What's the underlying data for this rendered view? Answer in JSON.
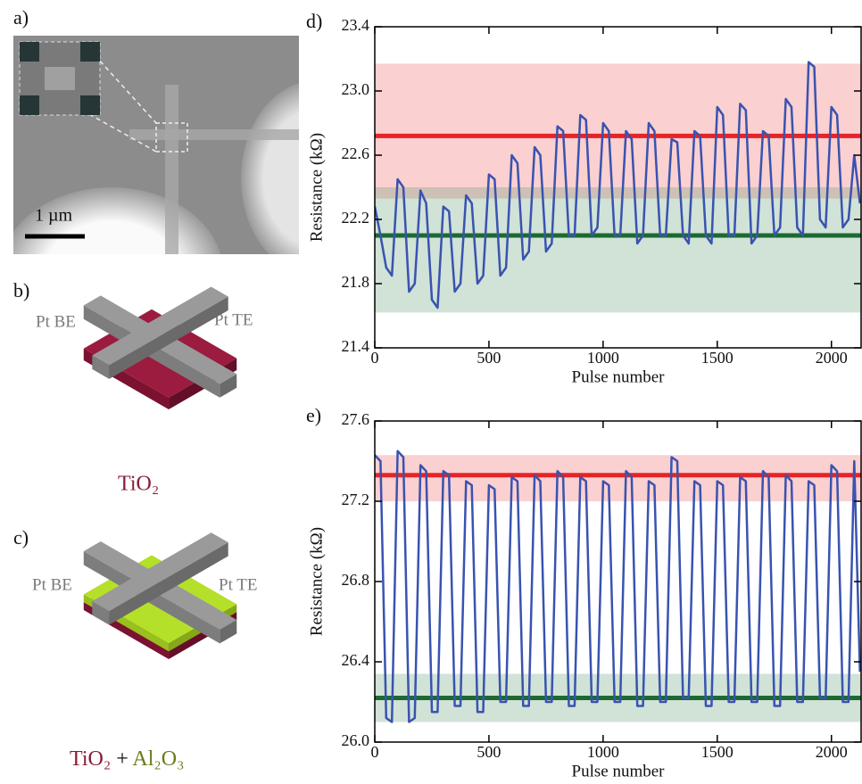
{
  "diagrams": {
    "a": {
      "label": "a)",
      "scale_bar": "1 µm"
    },
    "b": {
      "label": "b)",
      "bottom_electrode": "Pt BE",
      "top_electrode": "Pt TE",
      "material": "TiO₂"
    },
    "c": {
      "label": "c)",
      "bottom_electrode": "Pt BE",
      "top_electrode": "Pt TE",
      "material": "TiO₂",
      "plus": "+",
      "material2": "Al₂O₃"
    }
  },
  "chart_data": [
    {
      "type": "line",
      "panel_label": "d)",
      "xlabel": "Pulse number",
      "ylabel": "Resistance (kΩ)",
      "xlim": [
        0,
        2130
      ],
      "ylim": [
        21.4,
        23.4
      ],
      "xticks": [
        0,
        500,
        1000,
        1500,
        2000
      ],
      "yticks": [
        21.4,
        21.8,
        22.2,
        22.6,
        {
          "value": 23,
          "label": "23.0"
        },
        23.4
      ],
      "bands": [
        {
          "from": 22.33,
          "to": 23.17,
          "color": "rgba(240,110,110,0.32)"
        },
        {
          "from": 21.62,
          "to": 22.4,
          "color": "rgba(90,150,110,0.28)"
        }
      ],
      "hlines": [
        {
          "value": 22.72,
          "color": "#e62326"
        },
        {
          "value": 22.1,
          "color": "#1c6a30"
        }
      ],
      "x": [
        0,
        25,
        50,
        75,
        100,
        125,
        150,
        175,
        200,
        225,
        250,
        275,
        300,
        325,
        350,
        375,
        400,
        425,
        450,
        475,
        500,
        525,
        550,
        575,
        600,
        625,
        650,
        675,
        700,
        725,
        750,
        775,
        800,
        825,
        850,
        875,
        900,
        925,
        950,
        975,
        1000,
        1025,
        1050,
        1075,
        1100,
        1125,
        1150,
        1175,
        1200,
        1225,
        1250,
        1275,
        1300,
        1325,
        1350,
        1375,
        1400,
        1425,
        1450,
        1475,
        1500,
        1525,
        1550,
        1575,
        1600,
        1625,
        1650,
        1675,
        1700,
        1725,
        1750,
        1775,
        1800,
        1825,
        1850,
        1875,
        1900,
        1925,
        1950,
        1975,
        2000,
        2025,
        2050,
        2075,
        2100,
        2125
      ],
      "series": [
        {
          "color": "#3953b0",
          "values": [
            22.28,
            22.1,
            21.9,
            21.85,
            22.45,
            22.4,
            21.75,
            21.8,
            22.38,
            22.3,
            21.7,
            21.65,
            22.28,
            22.25,
            21.75,
            21.8,
            22.35,
            22.3,
            21.8,
            21.85,
            22.48,
            22.45,
            21.85,
            21.9,
            22.6,
            22.55,
            21.95,
            22.0,
            22.65,
            22.6,
            22.0,
            22.05,
            22.78,
            22.75,
            22.1,
            22.1,
            22.85,
            22.82,
            22.1,
            22.15,
            22.8,
            22.75,
            22.1,
            22.1,
            22.75,
            22.7,
            22.05,
            22.1,
            22.8,
            22.75,
            22.1,
            22.1,
            22.7,
            22.68,
            22.1,
            22.05,
            22.75,
            22.72,
            22.1,
            22.05,
            22.9,
            22.85,
            22.1,
            22.1,
            22.92,
            22.88,
            22.05,
            22.1,
            22.75,
            22.72,
            22.1,
            22.15,
            22.95,
            22.9,
            22.15,
            22.1,
            23.18,
            23.15,
            22.2,
            22.15,
            22.9,
            22.85,
            22.15,
            22.2,
            22.6,
            22.3
          ]
        }
      ]
    },
    {
      "type": "line",
      "panel_label": "e)",
      "xlabel": "Pulse number",
      "ylabel": "Resistance (kΩ)",
      "xlim": [
        0,
        2130
      ],
      "ylim": [
        26.0,
        27.6
      ],
      "xticks": [
        0,
        500,
        1000,
        1500,
        2000
      ],
      "yticks": [
        {
          "value": 26,
          "label": "26.0"
        },
        26.4,
        26.8,
        27.2,
        27.6
      ],
      "bands": [
        {
          "from": 27.2,
          "to": 27.43,
          "color": "rgba(240,110,110,0.32)"
        },
        {
          "from": 26.1,
          "to": 26.34,
          "color": "rgba(90,150,110,0.28)"
        }
      ],
      "hlines": [
        {
          "value": 27.33,
          "color": "#e62326"
        },
        {
          "value": 26.22,
          "color": "#1c6a30"
        }
      ],
      "x": [
        0,
        25,
        50,
        75,
        100,
        125,
        150,
        175,
        200,
        225,
        250,
        275,
        300,
        325,
        350,
        375,
        400,
        425,
        450,
        475,
        500,
        525,
        550,
        575,
        600,
        625,
        650,
        675,
        700,
        725,
        750,
        775,
        800,
        825,
        850,
        875,
        900,
        925,
        950,
        975,
        1000,
        1025,
        1050,
        1075,
        1100,
        1125,
        1150,
        1175,
        1200,
        1225,
        1250,
        1275,
        1300,
        1325,
        1350,
        1375,
        1400,
        1425,
        1450,
        1475,
        1500,
        1525,
        1550,
        1575,
        1600,
        1625,
        1650,
        1675,
        1700,
        1725,
        1750,
        1775,
        1800,
        1825,
        1850,
        1875,
        1900,
        1925,
        1950,
        1975,
        2000,
        2025,
        2050,
        2075,
        2100,
        2125
      ],
      "series": [
        {
          "color": "#3953b0",
          "values": [
            27.43,
            27.4,
            26.12,
            26.1,
            27.45,
            27.42,
            26.1,
            26.12,
            27.38,
            27.35,
            26.15,
            26.15,
            27.35,
            27.33,
            26.18,
            26.18,
            27.3,
            27.28,
            26.15,
            26.15,
            27.28,
            27.26,
            26.2,
            26.2,
            27.32,
            27.3,
            26.18,
            26.18,
            27.33,
            27.3,
            26.2,
            26.2,
            27.35,
            27.32,
            26.18,
            26.18,
            27.32,
            27.3,
            26.2,
            26.2,
            27.3,
            27.28,
            26.2,
            26.2,
            27.35,
            27.32,
            26.18,
            26.18,
            27.3,
            27.28,
            26.2,
            26.2,
            27.42,
            27.4,
            26.22,
            26.22,
            27.3,
            27.28,
            26.18,
            26.18,
            27.3,
            27.28,
            26.2,
            26.2,
            27.32,
            27.3,
            26.2,
            26.2,
            27.35,
            27.32,
            26.18,
            26.18,
            27.33,
            27.3,
            26.2,
            26.2,
            27.3,
            27.28,
            26.22,
            26.22,
            27.38,
            27.35,
            26.2,
            26.2,
            27.4,
            26.35
          ]
        }
      ]
    }
  ]
}
